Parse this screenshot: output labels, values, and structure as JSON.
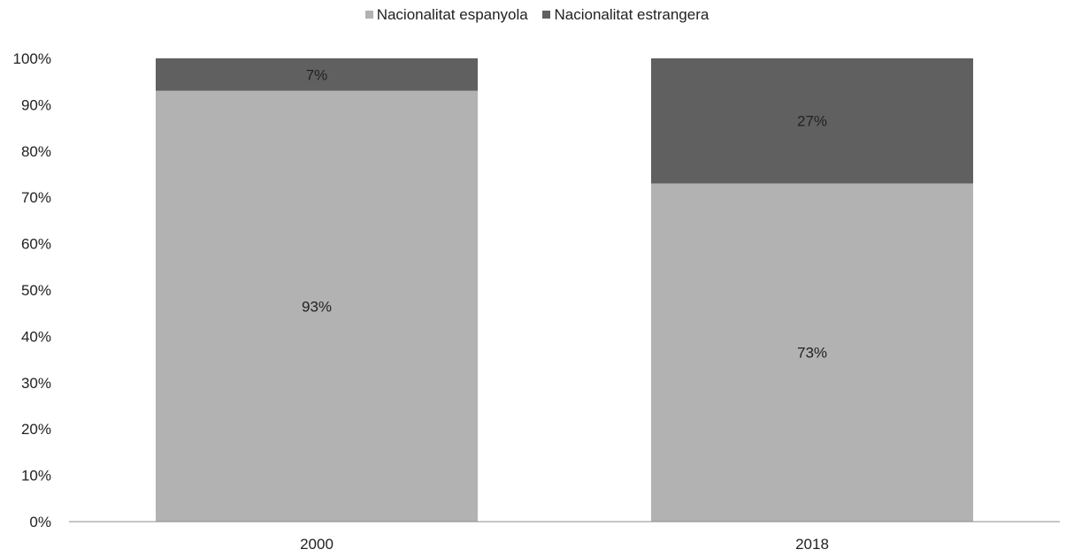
{
  "chart_data": {
    "type": "bar",
    "stacked": true,
    "categories": [
      "2000",
      "2018"
    ],
    "series": [
      {
        "name": "Nacionalitat espanyola",
        "values": [
          93,
          73
        ],
        "labels": [
          "93%",
          "73%"
        ],
        "color": "#b2b2b2"
      },
      {
        "name": "Nacionalitat estrangera",
        "values": [
          7,
          27
        ],
        "labels": [
          "7%",
          "27%"
        ],
        "color": "#606060"
      }
    ],
    "ylim": [
      0,
      100
    ],
    "yticks": [
      "0%",
      "10%",
      "20%",
      "30%",
      "40%",
      "50%",
      "60%",
      "70%",
      "80%",
      "90%",
      "100%"
    ],
    "grid": false,
    "legend_position": "top"
  }
}
